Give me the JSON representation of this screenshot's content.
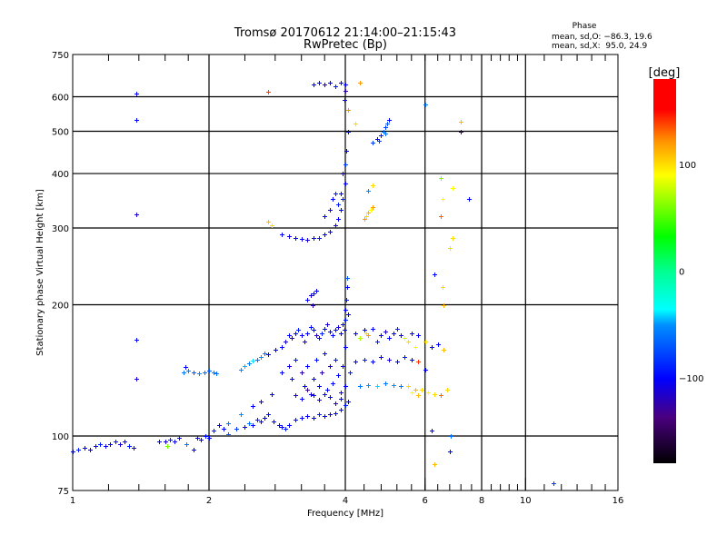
{
  "chart_data": {
    "type": "scatter",
    "title": "Tromsø 20170612 21:14:00–21:15:43",
    "subtitle": "RwPretec (Bp)",
    "stats": {
      "heading": "Phase",
      "o_line": "mean, sd,O: −86.3, 19.6",
      "x_line": "mean, sd,X:  95.0, 24.9"
    },
    "xlabel": "Frequency [MHz]",
    "ylabel": "Stationary phase Virtual Height [km]",
    "xscale": "log",
    "yscale": "log",
    "xlim": [
      1,
      16
    ],
    "ylim": [
      75,
      750
    ],
    "xticks": [
      1,
      2,
      4,
      6,
      8,
      10,
      16
    ],
    "xtick_labels": [
      "1",
      "2",
      "4",
      "6",
      "8",
      "10",
      "16"
    ],
    "xgrid": [
      2,
      4,
      6,
      8,
      10
    ],
    "yticks": [
      75,
      100,
      200,
      300,
      400,
      500,
      600,
      750
    ],
    "ytick_labels": [
      "75",
      "100",
      "200",
      "300",
      "400",
      "500",
      "600",
      "750"
    ],
    "ygrid": [
      100,
      200,
      300,
      400,
      500,
      600
    ],
    "grid": true,
    "colorbar": {
      "label": "[deg]",
      "range": [
        -180,
        180
      ],
      "ticks": [
        100,
        0,
        -100
      ],
      "tick_labels": [
        "100",
        "0",
        "−100"
      ]
    },
    "point_fields": [
      "frequency_MHz",
      "height_km",
      "phase_deg"
    ],
    "points": [
      [
        1.0,
        92,
        -100
      ],
      [
        1.03,
        93,
        -90
      ],
      [
        1.06,
        94,
        -100
      ],
      [
        1.09,
        93,
        -110
      ],
      [
        1.12,
        95,
        -100
      ],
      [
        1.15,
        96,
        -90
      ],
      [
        1.18,
        95,
        -105
      ],
      [
        1.21,
        96,
        -100
      ],
      [
        1.24,
        97,
        -95
      ],
      [
        1.27,
        96,
        -110
      ],
      [
        1.3,
        97,
        -100
      ],
      [
        1.33,
        95,
        -90
      ],
      [
        1.36,
        94,
        -120
      ],
      [
        1.55,
        97,
        -100
      ],
      [
        1.6,
        97,
        -110
      ],
      [
        1.64,
        98,
        -90
      ],
      [
        1.68,
        97,
        -105
      ],
      [
        1.72,
        99,
        -95
      ],
      [
        1.62,
        95,
        60
      ],
      [
        1.78,
        96,
        -60
      ],
      [
        1.88,
        99,
        -100
      ],
      [
        1.92,
        98,
        -110
      ],
      [
        1.96,
        100,
        -95
      ],
      [
        2.0,
        99,
        -100
      ],
      [
        2.05,
        103,
        -90
      ],
      [
        2.1,
        106,
        -110
      ],
      [
        2.15,
        104,
        -100
      ],
      [
        2.2,
        101,
        -70
      ],
      [
        1.85,
        93,
        -100
      ],
      [
        1.38,
        610,
        -100
      ],
      [
        1.38,
        530,
        -100
      ],
      [
        1.38,
        322,
        -110
      ],
      [
        1.38,
        166,
        -100
      ],
      [
        1.38,
        135,
        -110
      ],
      [
        1.76,
        140,
        -60
      ],
      [
        1.8,
        141,
        -55
      ],
      [
        1.85,
        140,
        -65
      ],
      [
        1.9,
        139,
        -50
      ],
      [
        1.95,
        140,
        -60
      ],
      [
        2.0,
        141,
        -70
      ],
      [
        2.05,
        140,
        -55
      ],
      [
        2.08,
        139,
        -60
      ],
      [
        1.77,
        144,
        -100
      ],
      [
        2.3,
        104,
        -80
      ],
      [
        2.4,
        105,
        -100
      ],
      [
        2.45,
        107,
        -60
      ],
      [
        2.5,
        106,
        -100
      ],
      [
        2.55,
        109,
        -90
      ],
      [
        2.6,
        108,
        -110
      ],
      [
        2.65,
        110,
        -100
      ],
      [
        2.7,
        112,
        -95
      ],
      [
        2.78,
        108,
        -100
      ],
      [
        2.85,
        106,
        -110
      ],
      [
        2.9,
        105,
        -100
      ],
      [
        2.95,
        104,
        -90
      ],
      [
        3.0,
        106,
        -100
      ],
      [
        3.1,
        109,
        -95
      ],
      [
        3.2,
        110,
        -100
      ],
      [
        3.3,
        111,
        -105
      ],
      [
        3.4,
        110,
        -100
      ],
      [
        3.5,
        112,
        -90
      ],
      [
        3.6,
        111,
        -100
      ],
      [
        3.7,
        112,
        -110
      ],
      [
        3.8,
        113,
        -100
      ],
      [
        3.9,
        115,
        -95
      ],
      [
        2.2,
        107,
        -60
      ],
      [
        2.35,
        112,
        -50
      ],
      [
        2.5,
        117,
        -100
      ],
      [
        2.6,
        120,
        -120
      ],
      [
        2.75,
        125,
        -100
      ],
      [
        2.35,
        142,
        -50
      ],
      [
        2.4,
        145,
        -45
      ],
      [
        2.45,
        147,
        -55
      ],
      [
        2.5,
        149,
        -40
      ],
      [
        2.55,
        150,
        -60
      ],
      [
        2.6,
        152,
        -50
      ],
      [
        2.65,
        155,
        -60
      ],
      [
        2.7,
        154,
        -100
      ],
      [
        2.8,
        158,
        -100
      ],
      [
        2.9,
        160,
        -100
      ],
      [
        2.95,
        165,
        -110
      ],
      [
        3.0,
        170,
        -100
      ],
      [
        3.05,
        168,
        -120
      ],
      [
        3.1,
        172,
        -100
      ],
      [
        3.15,
        175,
        -90
      ],
      [
        3.2,
        170,
        -100
      ],
      [
        3.25,
        165,
        -110
      ],
      [
        3.3,
        172,
        -100
      ],
      [
        3.35,
        178,
        -95
      ],
      [
        3.4,
        175,
        -100
      ],
      [
        3.45,
        170,
        -120
      ],
      [
        3.5,
        168,
        -100
      ],
      [
        3.55,
        172,
        -90
      ],
      [
        3.6,
        176,
        -100
      ],
      [
        3.65,
        180,
        -110
      ],
      [
        3.7,
        174,
        -100
      ],
      [
        3.75,
        170,
        -100
      ],
      [
        3.8,
        175,
        -95
      ],
      [
        3.85,
        178,
        -110
      ],
      [
        3.9,
        172,
        -100
      ],
      [
        3.95,
        180,
        -100
      ],
      [
        4.0,
        185,
        -90
      ],
      [
        2.9,
        140,
        -100
      ],
      [
        3.0,
        145,
        -110
      ],
      [
        3.05,
        135,
        -100
      ],
      [
        3.1,
        150,
        -90
      ],
      [
        3.2,
        140,
        -120
      ],
      [
        3.25,
        130,
        -100
      ],
      [
        3.3,
        145,
        -100
      ],
      [
        3.35,
        125,
        -110
      ],
      [
        3.4,
        135,
        -100
      ],
      [
        3.45,
        150,
        -95
      ],
      [
        3.5,
        130,
        -100
      ],
      [
        3.55,
        140,
        -120
      ],
      [
        3.6,
        155,
        -100
      ],
      [
        3.65,
        128,
        -100
      ],
      [
        3.7,
        145,
        -110
      ],
      [
        3.75,
        132,
        -100
      ],
      [
        3.8,
        150,
        -90
      ],
      [
        3.85,
        138,
        -100
      ],
      [
        3.9,
        126,
        -110
      ],
      [
        3.95,
        145,
        -100
      ],
      [
        4.0,
        130,
        -100
      ],
      [
        4.05,
        120,
        -100
      ],
      [
        4.1,
        140,
        -90
      ],
      [
        3.1,
        124,
        -110
      ],
      [
        3.2,
        122,
        -100
      ],
      [
        3.3,
        128,
        -130
      ],
      [
        3.4,
        124,
        -100
      ],
      [
        3.5,
        121,
        -110
      ],
      [
        3.6,
        125,
        -100
      ],
      [
        3.7,
        123,
        -100
      ],
      [
        3.8,
        119,
        -120
      ],
      [
        3.9,
        122,
        -100
      ],
      [
        4.0,
        118,
        -90
      ],
      [
        3.3,
        205,
        -100
      ],
      [
        3.35,
        210,
        -110
      ],
      [
        3.4,
        212,
        -100
      ],
      [
        3.45,
        215,
        -100
      ],
      [
        3.38,
        200,
        -120
      ],
      [
        4.0,
        160,
        -100
      ],
      [
        4.0,
        195,
        -100
      ],
      [
        4.02,
        205,
        -90
      ],
      [
        4.03,
        220,
        -100
      ],
      [
        4.04,
        230,
        -70
      ],
      [
        3.98,
        175,
        -100
      ],
      [
        4.05,
        190,
        -100
      ],
      [
        4.2,
        172,
        -100
      ],
      [
        4.3,
        168,
        70
      ],
      [
        4.4,
        175,
        -100
      ],
      [
        4.45,
        172,
        100
      ],
      [
        4.5,
        170,
        120
      ],
      [
        4.6,
        176,
        -100
      ],
      [
        4.7,
        165,
        -90
      ],
      [
        4.8,
        170,
        -100
      ],
      [
        4.9,
        174,
        -110
      ],
      [
        5.0,
        168,
        -100
      ],
      [
        5.1,
        172,
        -100
      ],
      [
        5.2,
        176,
        -90
      ],
      [
        5.3,
        170,
        -100
      ],
      [
        5.4,
        168,
        80
      ],
      [
        5.5,
        165,
        100
      ],
      [
        5.6,
        172,
        -100
      ],
      [
        5.7,
        160,
        90
      ],
      [
        5.8,
        170,
        -100
      ],
      [
        6.0,
        165,
        100
      ],
      [
        6.2,
        160,
        -100
      ],
      [
        6.4,
        162,
        -100
      ],
      [
        6.6,
        158,
        110
      ],
      [
        4.2,
        148,
        -100
      ],
      [
        4.4,
        150,
        -90
      ],
      [
        4.6,
        148,
        -100
      ],
      [
        4.8,
        152,
        -100
      ],
      [
        5.0,
        150,
        -110
      ],
      [
        5.2,
        148,
        -100
      ],
      [
        5.4,
        152,
        -90
      ],
      [
        5.6,
        150,
        -100
      ],
      [
        5.8,
        148,
        140
      ],
      [
        6.0,
        142,
        -100
      ],
      [
        4.3,
        130,
        -60
      ],
      [
        4.5,
        131,
        -50
      ],
      [
        4.7,
        130,
        -40
      ],
      [
        4.9,
        132,
        -60
      ],
      [
        5.1,
        131,
        -50
      ],
      [
        5.3,
        130,
        -55
      ],
      [
        5.5,
        130,
        100
      ],
      [
        5.7,
        128,
        110
      ],
      [
        5.9,
        128,
        100
      ],
      [
        6.1,
        126,
        90
      ],
      [
        6.3,
        125,
        100
      ],
      [
        6.5,
        124,
        130
      ],
      [
        6.7,
        128,
        100
      ],
      [
        5.6,
        126,
        90
      ],
      [
        5.8,
        124,
        110
      ],
      [
        2.9,
        290,
        -100
      ],
      [
        3.0,
        288,
        -110
      ],
      [
        3.1,
        285,
        -100
      ],
      [
        3.2,
        283,
        -100
      ],
      [
        3.3,
        282,
        -110
      ],
      [
        3.4,
        284,
        -100
      ],
      [
        3.5,
        285,
        -90
      ],
      [
        3.6,
        290,
        -100
      ],
      [
        3.7,
        295,
        -100
      ],
      [
        3.8,
        305,
        -110
      ],
      [
        3.85,
        315,
        -100
      ],
      [
        3.9,
        330,
        -100
      ],
      [
        3.95,
        350,
        -90
      ],
      [
        4.0,
        380,
        -100
      ],
      [
        4.0,
        420,
        -80
      ],
      [
        4.02,
        450,
        -100
      ],
      [
        4.05,
        500,
        -100
      ],
      [
        3.95,
        400,
        -110
      ],
      [
        3.9,
        360,
        -100
      ],
      [
        3.85,
        340,
        -90
      ],
      [
        2.7,
        310,
        110
      ],
      [
        2.75,
        305,
        100
      ],
      [
        3.6,
        320,
        -100
      ],
      [
        3.7,
        330,
        -110
      ],
      [
        3.75,
        350,
        -100
      ],
      [
        3.8,
        360,
        -90
      ],
      [
        4.6,
        470,
        -80
      ],
      [
        4.7,
        480,
        -100
      ],
      [
        4.8,
        490,
        -90
      ],
      [
        4.85,
        500,
        -60
      ],
      [
        4.9,
        510,
        -80
      ],
      [
        4.95,
        520,
        -70
      ],
      [
        5.0,
        530,
        -100
      ],
      [
        4.75,
        475,
        -80
      ],
      [
        4.9,
        495,
        -60
      ],
      [
        4.4,
        315,
        120
      ],
      [
        4.45,
        320,
        100
      ],
      [
        4.5,
        325,
        110
      ],
      [
        4.55,
        330,
        90
      ],
      [
        4.6,
        335,
        120
      ],
      [
        4.5,
        365,
        -50
      ],
      [
        4.6,
        375,
        100
      ],
      [
        3.4,
        640,
        -100
      ],
      [
        3.5,
        645,
        -100
      ],
      [
        3.6,
        640,
        -120
      ],
      [
        3.7,
        645,
        -100
      ],
      [
        3.8,
        635,
        -90
      ],
      [
        3.9,
        645,
        -110
      ],
      [
        4.0,
        640,
        -100
      ],
      [
        4.0,
        620,
        -120
      ],
      [
        3.98,
        590,
        -100
      ],
      [
        4.3,
        645,
        120
      ],
      [
        2.7,
        615,
        140
      ],
      [
        4.2,
        520,
        100
      ],
      [
        4.05,
        560,
        120
      ],
      [
        6.0,
        575,
        -60
      ],
      [
        6.5,
        320,
        130
      ],
      [
        6.55,
        350,
        90
      ],
      [
        6.5,
        390,
        60
      ],
      [
        6.9,
        370,
        90
      ],
      [
        6.8,
        270,
        100
      ],
      [
        6.9,
        285,
        100
      ],
      [
        7.2,
        500,
        -150
      ],
      [
        7.2,
        525,
        110
      ],
      [
        7.5,
        350,
        -100
      ],
      [
        6.6,
        200,
        110
      ],
      [
        6.55,
        220,
        100
      ],
      [
        6.85,
        100,
        -60
      ],
      [
        6.8,
        92,
        -100
      ],
      [
        6.3,
        86,
        110
      ],
      [
        6.2,
        103,
        -100
      ],
      [
        11.5,
        78,
        -80
      ],
      [
        6.3,
        235,
        -100
      ]
    ]
  }
}
